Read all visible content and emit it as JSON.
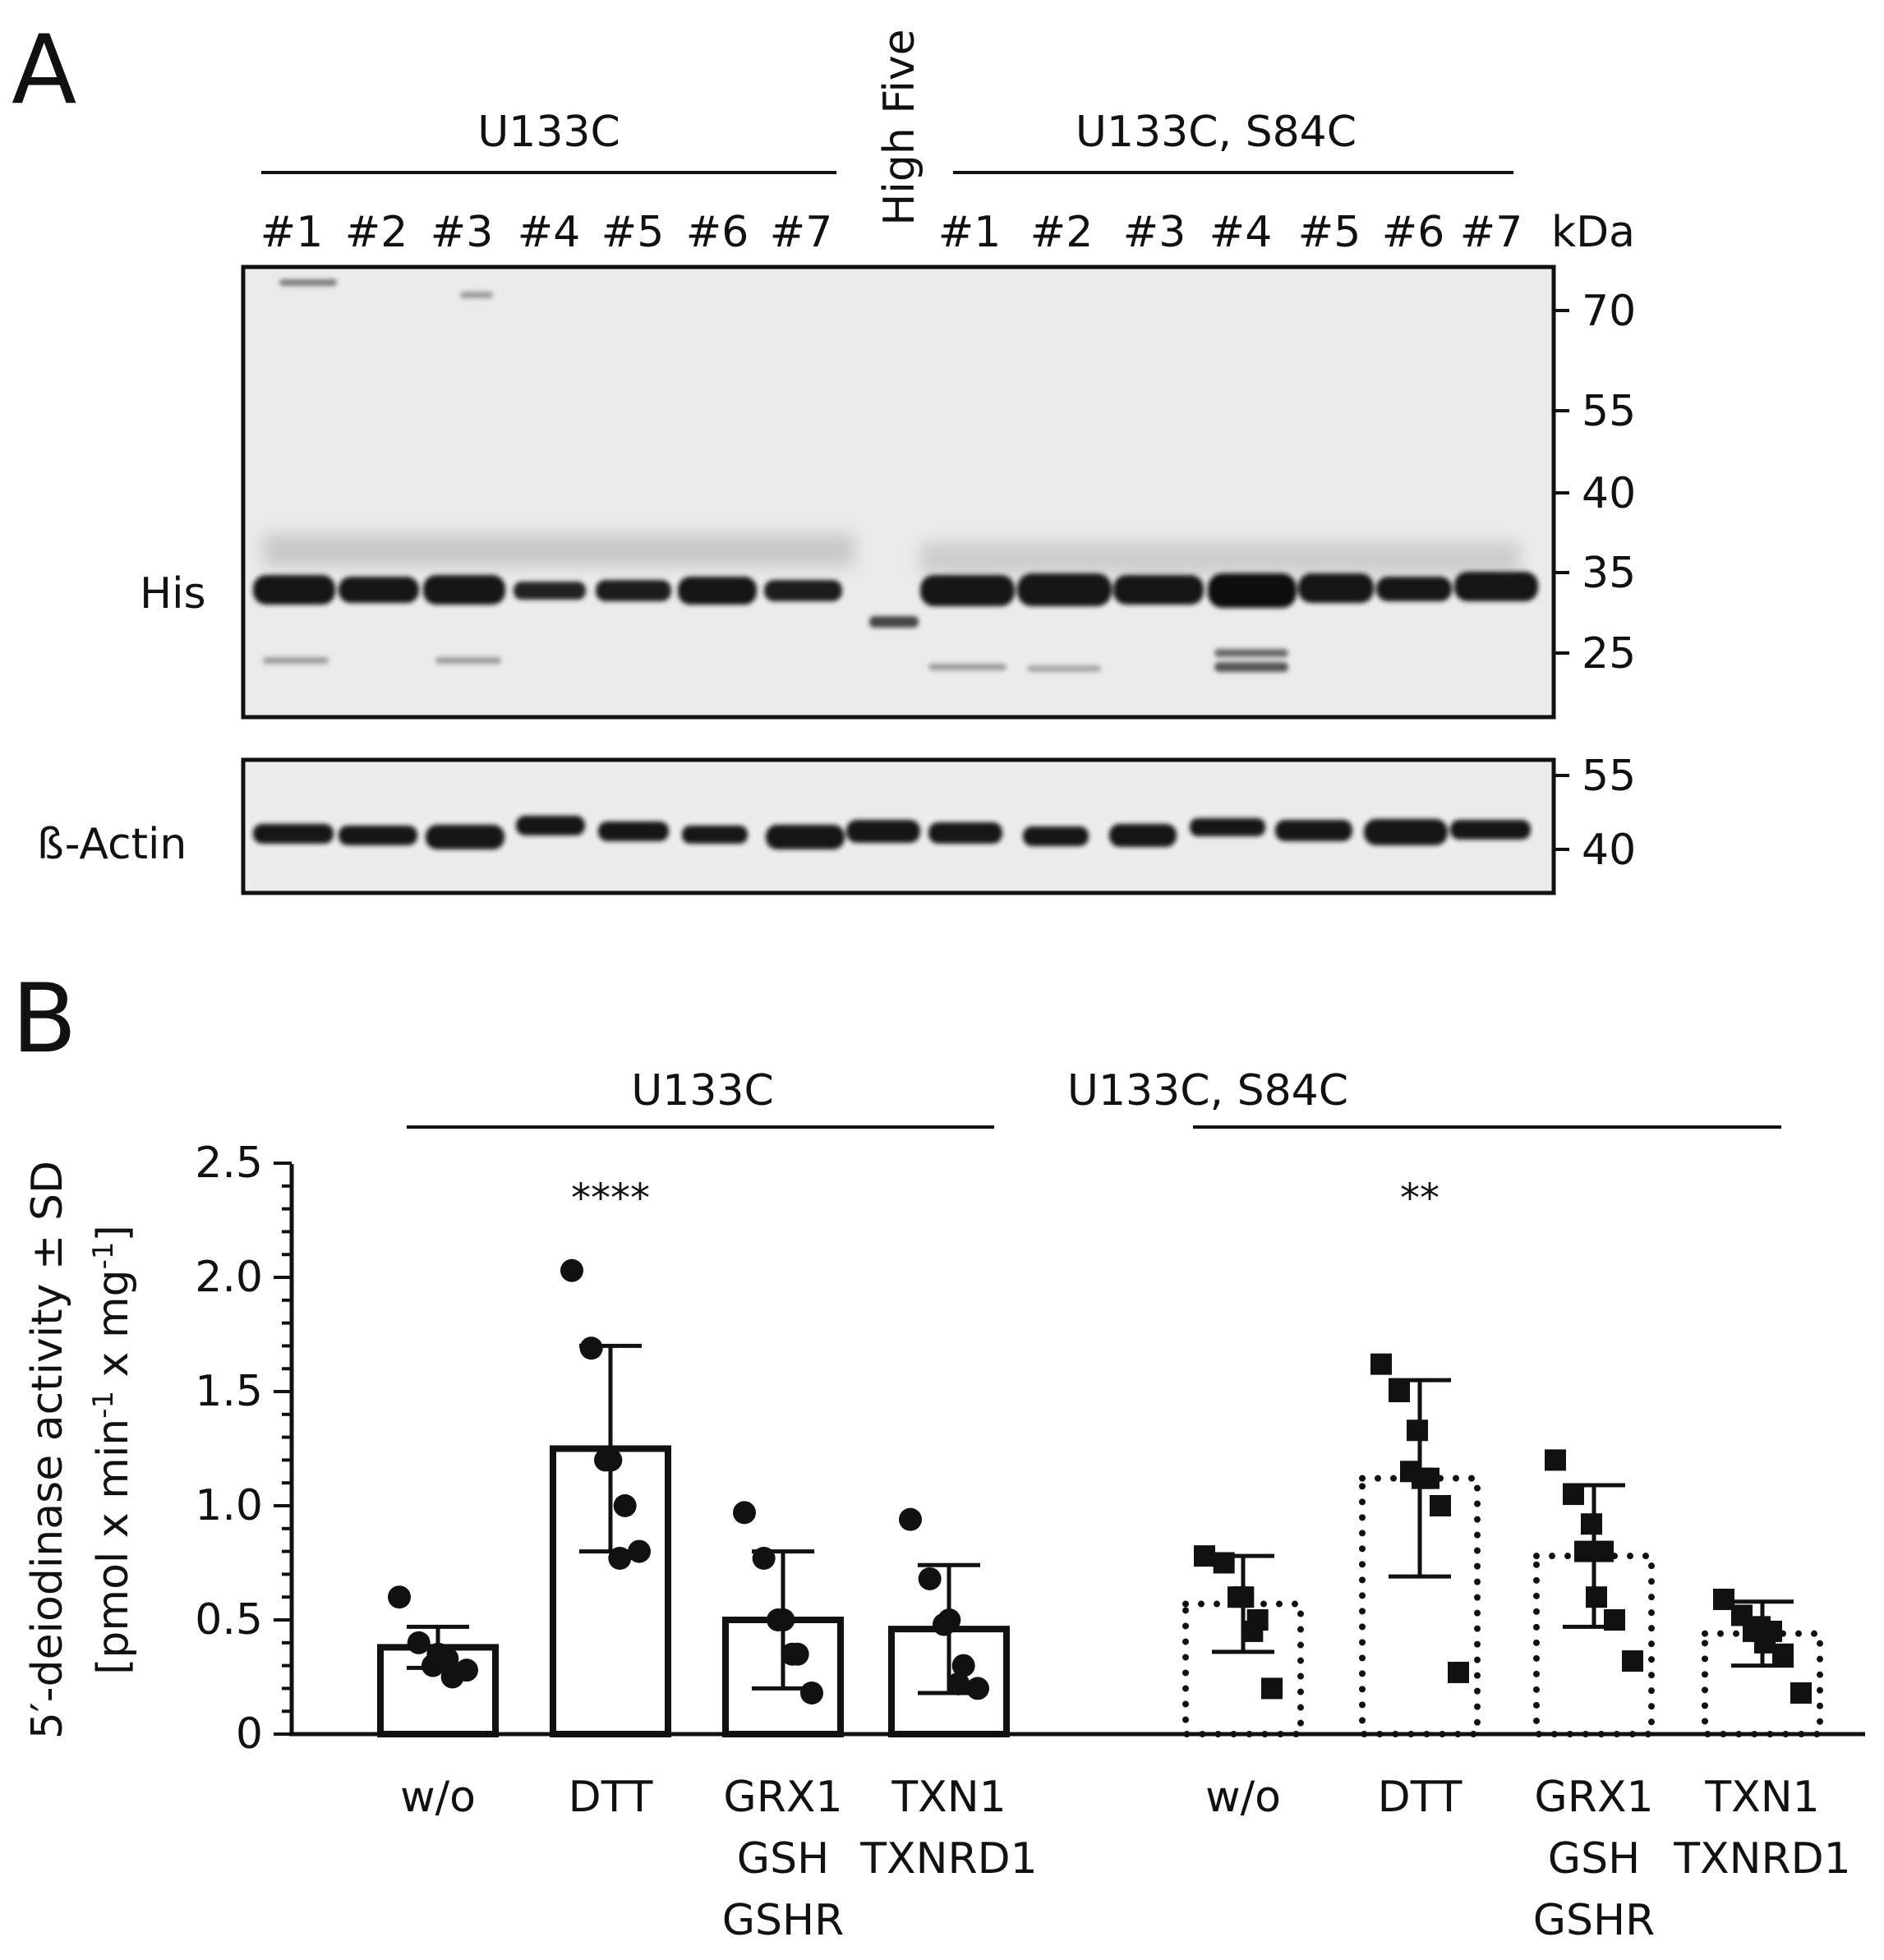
{
  "panel_a": {
    "letter": "A",
    "group_left": "U133C",
    "group_right": "U133C, S84C",
    "lanes_left": [
      "#1",
      "#2",
      "#3",
      "#4",
      "#5",
      "#6",
      "#7"
    ],
    "middle_lane": "High Five",
    "lanes_right": [
      "#1",
      "#2",
      "#3",
      "#4",
      "#5",
      "#6",
      "#7"
    ],
    "unit": "kDa",
    "blot_his_label": "His",
    "blot_actin_label": "ß-Actin",
    "his_markers": [
      "70",
      "55",
      "40",
      "35",
      "25"
    ],
    "actin_markers": [
      "55",
      "40"
    ]
  },
  "panel_b": {
    "letter": "B",
    "group_left": "U133C",
    "group_right": "U133C, S84C",
    "significance_left": "****",
    "significance_right": "**",
    "ylabel_line1": "5′-deiodinase activity ± SD",
    "ylabel_line2_parts": [
      "[pmol x min",
      "-1",
      " x mg",
      "-1",
      "]"
    ],
    "ytick_labels": [
      "0",
      "0.5",
      "1.0",
      "1.5",
      "2.0",
      "2.5"
    ],
    "xlabels_left": [
      [
        "w/o"
      ],
      [
        "DTT"
      ],
      [
        "GRX1",
        "GSH",
        "GSHR"
      ],
      [
        "TXN1",
        "TXNRD1"
      ]
    ],
    "xlabels_right": [
      [
        "w/o"
      ],
      [
        "DTT"
      ],
      [
        "GRX1",
        "GSH",
        "GSHR"
      ],
      [
        "TXN1",
        "TXNRD1"
      ]
    ]
  },
  "chart_data": {
    "type": "bar",
    "categories": [
      "w/o",
      "DTT",
      "GRX1 GSH GSHR",
      "TXN1 TXNRD1",
      "w/o",
      "DTT",
      "GRX1 GSH GSHR",
      "TXN1 TXNRD1"
    ],
    "groups": [
      "U133C",
      "U133C",
      "U133C",
      "U133C",
      "U133C, S84C",
      "U133C, S84C",
      "U133C, S84C",
      "U133C, S84C"
    ],
    "means": [
      0.38,
      1.25,
      0.5,
      0.46,
      0.57,
      1.12,
      0.78,
      0.44
    ],
    "sd": [
      0.09,
      0.45,
      0.3,
      0.28,
      0.21,
      0.43,
      0.31,
      0.14
    ],
    "points": [
      [
        0.6,
        0.4,
        0.35,
        0.3,
        0.25,
        0.33,
        0.28
      ],
      [
        2.03,
        1.69,
        1.2,
        1.2,
        1.0,
        0.77,
        0.8
      ],
      [
        0.97,
        0.77,
        0.5,
        0.5,
        0.35,
        0.35,
        0.18
      ],
      [
        0.94,
        0.68,
        0.5,
        0.48,
        0.3,
        0.22,
        0.2
      ],
      [
        0.78,
        0.75,
        0.6,
        0.6,
        0.5,
        0.45,
        0.2
      ],
      [
        1.62,
        1.5,
        1.33,
        1.15,
        1.12,
        1.12,
        1.0,
        0.27
      ],
      [
        1.2,
        1.05,
        0.92,
        0.8,
        0.8,
        0.6,
        0.5,
        0.32
      ],
      [
        0.59,
        0.52,
        0.47,
        0.45,
        0.45,
        0.4,
        0.35,
        0.18
      ]
    ],
    "ylim": [
      0,
      2.5
    ],
    "yticks": [
      0,
      0.5,
      1.0,
      1.5,
      2.0,
      2.5
    ],
    "markers": [
      "circle",
      "circle",
      "circle",
      "circle",
      "square",
      "square",
      "square",
      "square"
    ],
    "bar_styles": [
      "solid",
      "solid",
      "solid",
      "solid",
      "dotted",
      "dotted",
      "dotted",
      "dotted"
    ],
    "error_bars": "mean ± SD",
    "grid": false
  }
}
